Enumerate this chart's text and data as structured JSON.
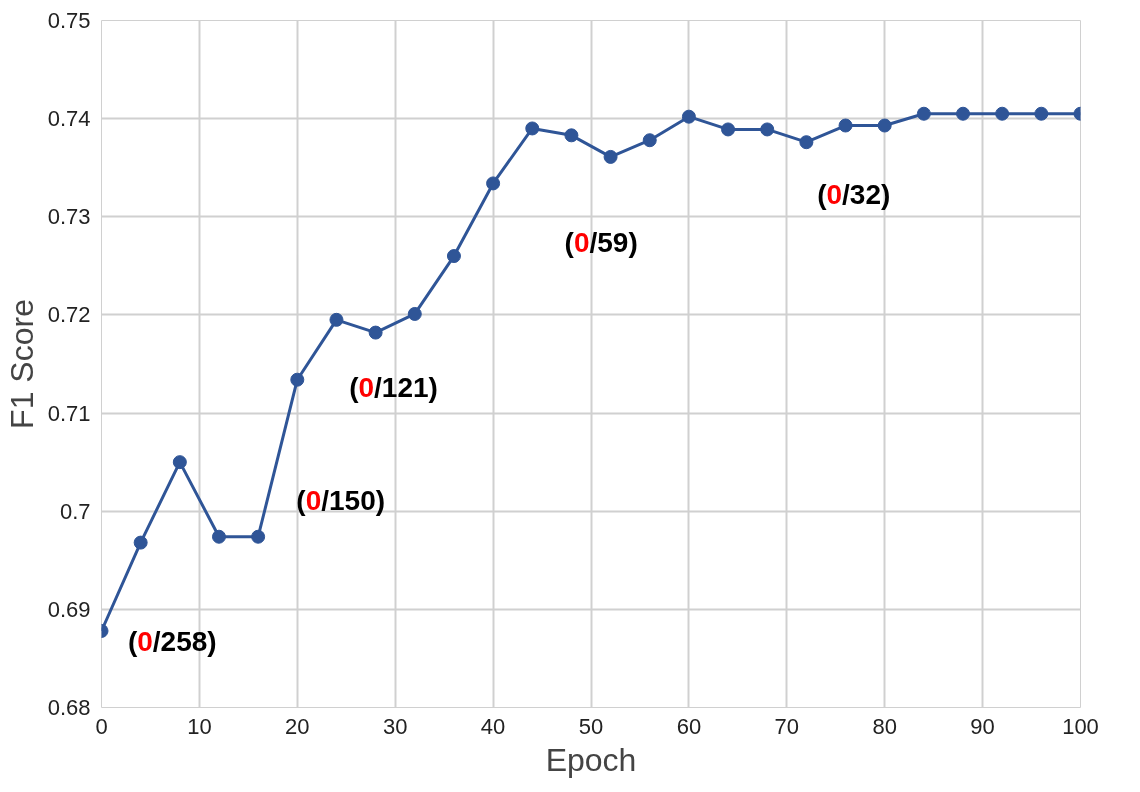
{
  "chart_data": {
    "type": "line",
    "xlabel": "Epoch",
    "ylabel": "F1 Score",
    "x": [
      0,
      4,
      8,
      12,
      16,
      20,
      24,
      28,
      32,
      36,
      40,
      44,
      48,
      52,
      56,
      60,
      64,
      68,
      72,
      76,
      80,
      84,
      88,
      92,
      96,
      100
    ],
    "series": [
      {
        "color": "#2f5597",
        "values": [
          0.6878,
          0.6968,
          0.705,
          0.6974,
          0.6974,
          0.7134,
          0.7195,
          0.7182,
          0.7201,
          0.726,
          0.7334,
          0.739,
          0.7383,
          0.7361,
          0.7378,
          0.7402,
          0.7389,
          0.7389,
          0.7376,
          0.7393,
          0.7393,
          0.7405,
          0.7405,
          0.7405,
          0.7405,
          0.7405
        ]
      }
    ],
    "xlim": [
      0,
      100
    ],
    "xticks": [
      0,
      10,
      20,
      30,
      40,
      50,
      60,
      70,
      80,
      90,
      100
    ],
    "ylim": [
      0.68,
      0.75
    ],
    "yticks": [
      0.68,
      0.69,
      0.7,
      0.71,
      0.72,
      0.73,
      0.74,
      0.75
    ],
    "grid": true,
    "marker": "circle",
    "line_style": "solid",
    "annotations": [
      "(0/258)",
      "(0/150)",
      "(0/121)",
      "(0/59)",
      "(0/32)"
    ]
  }
}
